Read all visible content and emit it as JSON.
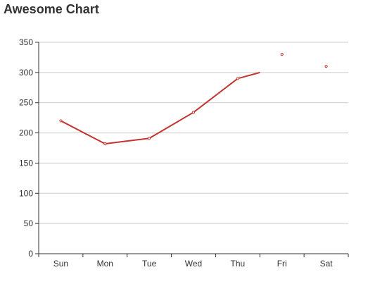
{
  "chart_data": {
    "type": "line",
    "title": "Awesome Chart",
    "xlabel": "",
    "ylabel": "",
    "categories": [
      "Sun",
      "Mon",
      "Tue",
      "Wed",
      "Thu",
      "Fri",
      "Sat"
    ],
    "series": [
      {
        "values": [
          220,
          182,
          191,
          234,
          290,
          310,
          null
        ],
        "color": "#c23531",
        "line_ends_at_index": 5
      },
      {
        "type": "scatter",
        "points": [
          {
            "x": "Fri",
            "y": 330
          },
          {
            "x": "Sat",
            "y": 310
          }
        ],
        "color": "#c23531"
      }
    ],
    "ylim": [
      0,
      350
    ],
    "yticks": [
      0,
      50,
      100,
      150,
      200,
      250,
      300,
      350
    ],
    "grid": true,
    "gridline_color": "#cccccc",
    "axis_color": "#333333"
  }
}
